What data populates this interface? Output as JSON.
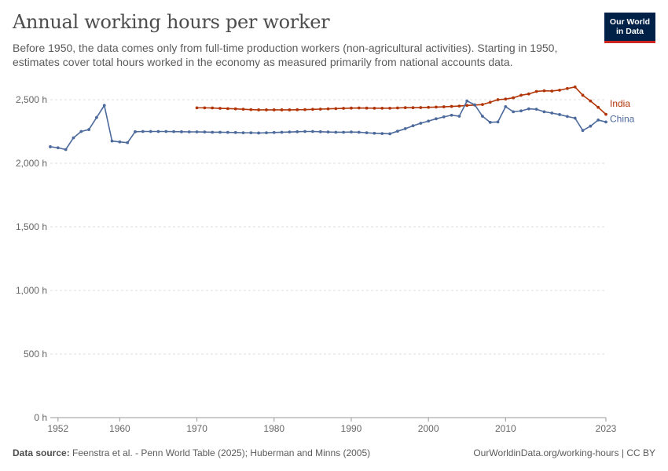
{
  "header": {
    "title": "Annual working hours per worker",
    "subtitle": "Before 1950, the data comes only from full-time production workers (non-agricultural activities). Starting in 1950, estimates cover total hours worked in the economy as measured primarily from national accounts data."
  },
  "logo": {
    "line1": "Our World",
    "line2": "in Data"
  },
  "footer": {
    "source_label": "Data source:",
    "source_text": "Feenstra et al. - Penn World Table (2025); Huberman and Minns (2005)",
    "link_text": "OurWorldinData.org/working-hours | CC BY"
  },
  "colors": {
    "india": "#b13507",
    "china": "#4c6a9c",
    "grid": "#dddddd",
    "text": "#666666"
  },
  "chart_data": {
    "type": "line",
    "title": "Annual working hours per worker",
    "xlabel": "",
    "ylabel": "",
    "xlim": [
      1951,
      2023
    ],
    "ylim": [
      0,
      2500
    ],
    "y_ticks": [
      0,
      500,
      1000,
      1500,
      2000,
      2500
    ],
    "y_tick_labels": [
      "0 h",
      "500 h",
      "1,000 h",
      "1,500 h",
      "2,000 h",
      "2,500 h"
    ],
    "x_ticks": [
      1952,
      1960,
      1970,
      1980,
      1990,
      2000,
      2010,
      2023
    ],
    "x_tick_labels": [
      "1952",
      "1960",
      "1970",
      "1980",
      "1990",
      "2000",
      "2010",
      "2023"
    ],
    "grid": true,
    "legend": "inline-right",
    "series": [
      {
        "name": "India",
        "x": [
          1970,
          1971,
          1972,
          1973,
          1974,
          1975,
          1976,
          1977,
          1978,
          1979,
          1980,
          1981,
          1982,
          1983,
          1984,
          1985,
          1986,
          1987,
          1988,
          1989,
          1990,
          1991,
          1992,
          1993,
          1994,
          1995,
          1996,
          1997,
          1998,
          1999,
          2000,
          2001,
          2002,
          2003,
          2004,
          2005,
          2006,
          2007,
          2008,
          2009,
          2010,
          2011,
          2012,
          2013,
          2014,
          2015,
          2016,
          2017,
          2018,
          2019,
          2020,
          2021,
          2022,
          2023
        ],
        "values": [
          2436,
          2436,
          2435,
          2432,
          2430,
          2428,
          2425,
          2422,
          2420,
          2420,
          2420,
          2420,
          2420,
          2421,
          2422,
          2424,
          2426,
          2428,
          2430,
          2432,
          2434,
          2435,
          2434,
          2433,
          2433,
          2433,
          2435,
          2437,
          2437,
          2438,
          2440,
          2442,
          2444,
          2447,
          2450,
          2455,
          2458,
          2462,
          2480,
          2500,
          2505,
          2515,
          2535,
          2545,
          2565,
          2570,
          2568,
          2575,
          2588,
          2600,
          2535,
          2490,
          2440,
          2385
        ]
      },
      {
        "name": "China",
        "x": [
          1951,
          1952,
          1953,
          1954,
          1955,
          1956,
          1957,
          1958,
          1959,
          1960,
          1961,
          1962,
          1963,
          1964,
          1965,
          1966,
          1967,
          1968,
          1969,
          1970,
          1971,
          1972,
          1973,
          1974,
          1975,
          1976,
          1977,
          1978,
          1979,
          1980,
          1981,
          1982,
          1983,
          1984,
          1985,
          1986,
          1987,
          1988,
          1989,
          1990,
          1991,
          1992,
          1993,
          1994,
          1995,
          1996,
          1997,
          1998,
          1999,
          2000,
          2001,
          2002,
          2003,
          2004,
          2005,
          2006,
          2007,
          2008,
          2009,
          2010,
          2011,
          2012,
          2013,
          2014,
          2015,
          2016,
          2017,
          2018,
          2019,
          2020,
          2021,
          2022,
          2023
        ],
        "values": [
          2130,
          2122,
          2108,
          2200,
          2250,
          2265,
          2360,
          2455,
          2175,
          2168,
          2162,
          2248,
          2250,
          2250,
          2250,
          2250,
          2249,
          2248,
          2247,
          2247,
          2246,
          2244,
          2244,
          2243,
          2242,
          2240,
          2240,
          2238,
          2240,
          2242,
          2244,
          2246,
          2248,
          2250,
          2250,
          2248,
          2246,
          2244,
          2244,
          2246,
          2244,
          2240,
          2236,
          2234,
          2232,
          2252,
          2272,
          2295,
          2315,
          2332,
          2350,
          2365,
          2378,
          2370,
          2490,
          2460,
          2370,
          2322,
          2325,
          2445,
          2405,
          2412,
          2428,
          2425,
          2405,
          2395,
          2383,
          2368,
          2355,
          2258,
          2292,
          2340,
          2325
        ]
      }
    ]
  }
}
